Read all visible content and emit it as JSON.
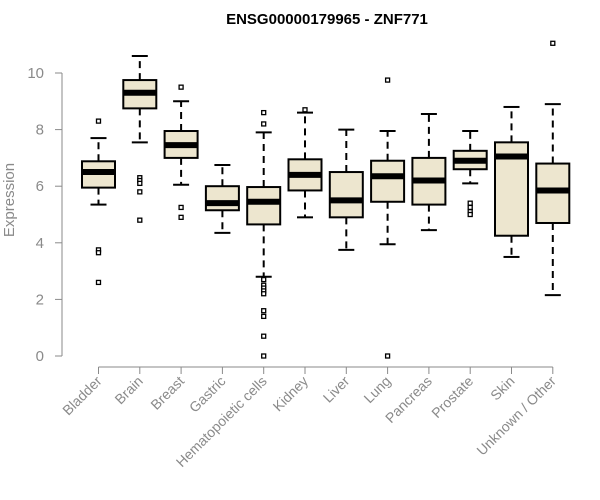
{
  "chart_data": {
    "type": "boxplot",
    "title": "ENSG00000179965 - ZNF771",
    "xlabel": "",
    "ylabel": "Expression",
    "ylim": [
      0,
      11
    ],
    "yticks": [
      0,
      2,
      4,
      6,
      8,
      10
    ],
    "grid": false,
    "legend": "none",
    "colors": {
      "box_fill": "#ede6cf",
      "box_stroke": "#000000",
      "median": "#000000",
      "axis": "#8a8a8a"
    },
    "categories": [
      "Bladder",
      "Brain",
      "Breast",
      "Gastric",
      "Hematopoietic cells",
      "Kidney",
      "Liver",
      "Lung",
      "Pancreas",
      "Prostate",
      "Skin",
      "Unknown / Other"
    ],
    "boxes": [
      {
        "q1": 5.95,
        "median": 6.5,
        "q3": 6.88,
        "whisker_low": 5.35,
        "whisker_high": 7.7,
        "outliers": [
          8.3,
          3.75,
          3.65,
          2.6
        ]
      },
      {
        "q1": 8.75,
        "median": 9.3,
        "q3": 9.75,
        "whisker_low": 7.55,
        "whisker_high": 10.6,
        "outliers": [
          6.3,
          6.2,
          6.1,
          5.8,
          4.8
        ]
      },
      {
        "q1": 7.0,
        "median": 7.45,
        "q3": 7.95,
        "whisker_low": 6.05,
        "whisker_high": 9.0,
        "outliers": [
          9.5,
          5.25,
          4.9
        ]
      },
      {
        "q1": 5.15,
        "median": 5.4,
        "q3": 6.0,
        "whisker_low": 4.35,
        "whisker_high": 6.75,
        "outliers": []
      },
      {
        "q1": 4.65,
        "median": 5.45,
        "q3": 5.97,
        "whisker_low": 2.8,
        "whisker_high": 7.9,
        "outliers": [
          8.6,
          8.2,
          2.7,
          2.5,
          2.4,
          2.3,
          2.2,
          1.6,
          1.4,
          0.7,
          0.0
        ]
      },
      {
        "q1": 5.85,
        "median": 6.4,
        "q3": 6.95,
        "whisker_low": 4.9,
        "whisker_high": 8.6,
        "outliers": [
          8.7
        ]
      },
      {
        "q1": 4.9,
        "median": 5.5,
        "q3": 6.5,
        "whisker_low": 3.75,
        "whisker_high": 8.0,
        "outliers": []
      },
      {
        "q1": 5.45,
        "median": 6.35,
        "q3": 6.9,
        "whisker_low": 3.95,
        "whisker_high": 7.95,
        "outliers": [
          9.75,
          0.0
        ]
      },
      {
        "q1": 5.35,
        "median": 6.2,
        "q3": 7.0,
        "whisker_low": 4.45,
        "whisker_high": 8.55,
        "outliers": []
      },
      {
        "q1": 6.6,
        "median": 6.9,
        "q3": 7.25,
        "whisker_low": 6.1,
        "whisker_high": 7.95,
        "outliers": [
          5.4,
          5.25,
          5.1,
          5.0
        ]
      },
      {
        "q1": 4.25,
        "median": 7.05,
        "q3": 7.55,
        "whisker_low": 3.5,
        "whisker_high": 8.8,
        "outliers": []
      },
      {
        "q1": 4.7,
        "median": 5.85,
        "q3": 6.8,
        "whisker_low": 2.15,
        "whisker_high": 8.9,
        "outliers": [
          11.05
        ]
      }
    ]
  }
}
